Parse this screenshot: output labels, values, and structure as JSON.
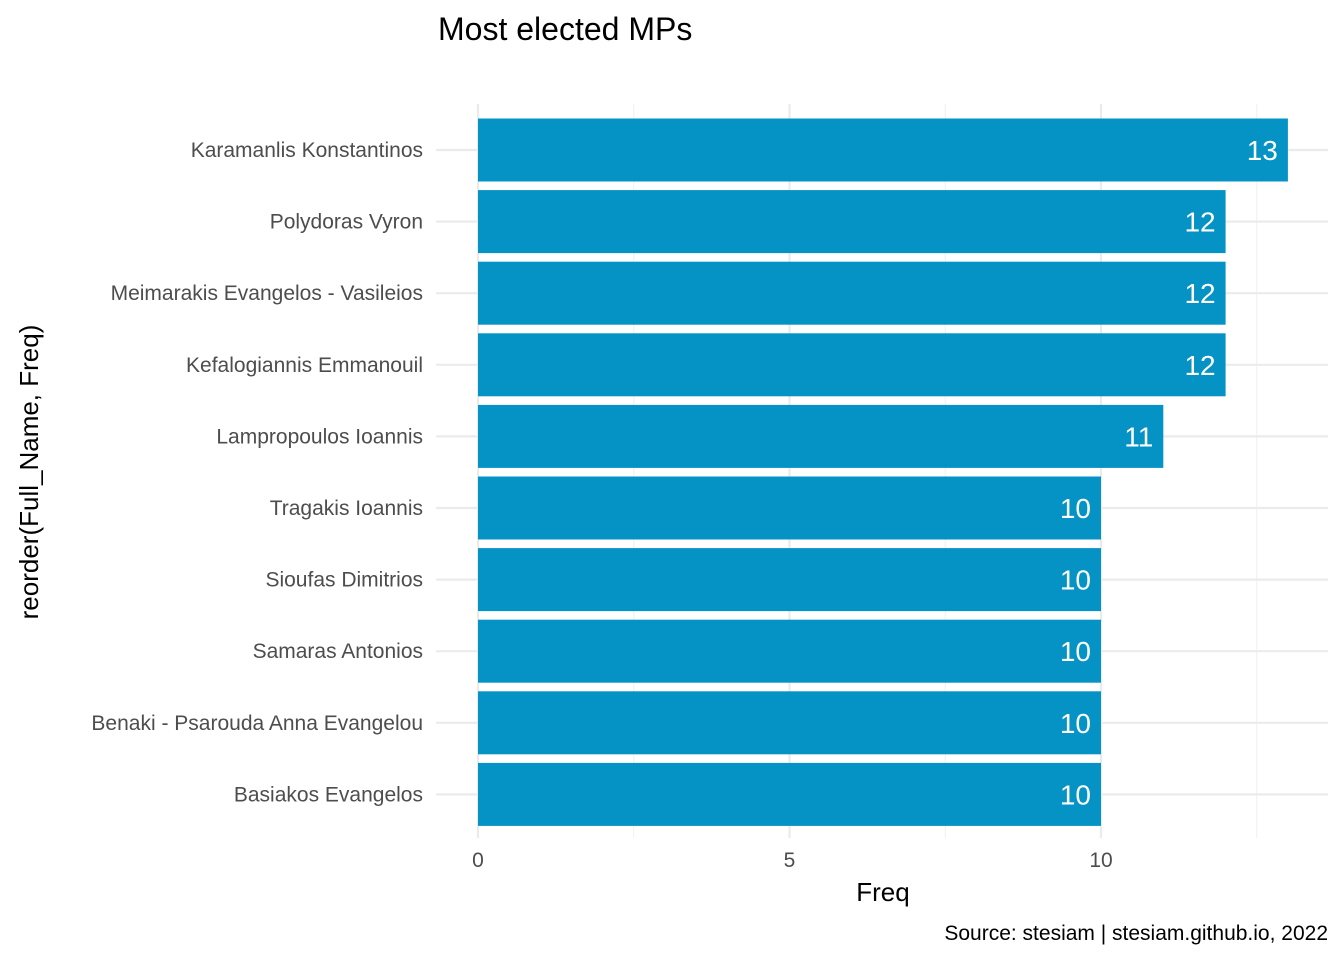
{
  "chart_data": {
    "type": "bar",
    "orientation": "horizontal",
    "title": "Most elected MPs",
    "xlabel": "Freq",
    "ylabel": "reorder(Full_Name, Freq)",
    "caption": "Source: stesiam | stesiam.github.io, 2022",
    "categories": [
      "Karamanlis Konstantinos",
      "Polydoras Vyron",
      "Meimarakis Evangelos - Vasileios",
      "Kefalogiannis Emmanouil",
      "Lampropoulos Ioannis",
      "Tragakis Ioannis",
      "Sioufas Dimitrios",
      "Samaras Antonios",
      "Benaki - Psarouda Anna Evangelou",
      "Basiakos Evangelos"
    ],
    "values": [
      13,
      12,
      12,
      12,
      11,
      10,
      10,
      10,
      10,
      10
    ],
    "xlim": [
      0,
      13
    ],
    "xticks": [
      0,
      5,
      10
    ],
    "grid": true,
    "legend": "none",
    "bar_color": "#0493c4",
    "label_color": "#ffffff"
  }
}
